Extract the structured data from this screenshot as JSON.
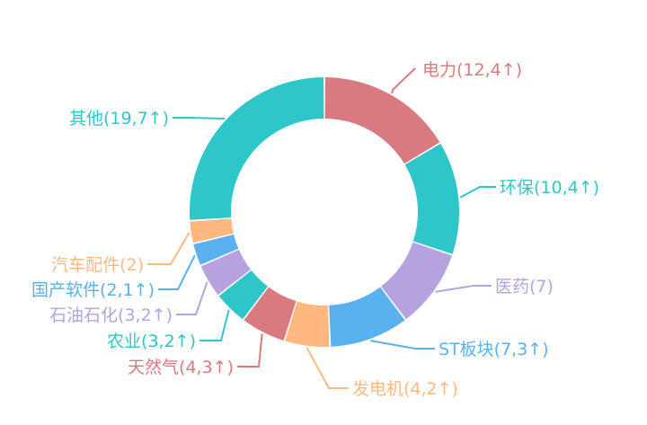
{
  "chart_data": {
    "type": "pie",
    "donut": true,
    "title": "",
    "legend": "none",
    "slices": [
      {
        "name": "电力",
        "value": 12,
        "label": "电力(12,4↑)",
        "color": "#d87a7f"
      },
      {
        "name": "环保",
        "value": 10,
        "label": "环保(10,4↑)",
        "color": "#2ec7c9"
      },
      {
        "name": "医药",
        "value": 7,
        "label": "医药(7)",
        "color": "#b6a2de"
      },
      {
        "name": "ST板块",
        "value": 7,
        "label": "ST板块(7,3↑)",
        "color": "#5ab1ef"
      },
      {
        "name": "发电机",
        "value": 4,
        "label": "发电机(4,2↑)",
        "color": "#ffb980"
      },
      {
        "name": "天然气",
        "value": 4,
        "label": "天然气(4,3↑)",
        "color": "#d87a80"
      },
      {
        "name": "农业",
        "value": 3,
        "label": "农业(3,2↑)",
        "color": "#2ec7c9"
      },
      {
        "name": "石油石化",
        "value": 3,
        "label": "石油石化(3,2↑)",
        "color": "#b6a2de"
      },
      {
        "name": "国产软件",
        "value": 2,
        "label": "国产软件(2,1↑)",
        "color": "#5ab1ef"
      },
      {
        "name": "汽车配件",
        "value": 2,
        "label": "汽车配件(2)",
        "color": "#ffb980"
      },
      {
        "name": "其他",
        "value": 19,
        "label": "其他(19,7↑)",
        "color": "#2ec7c9"
      }
    ]
  }
}
